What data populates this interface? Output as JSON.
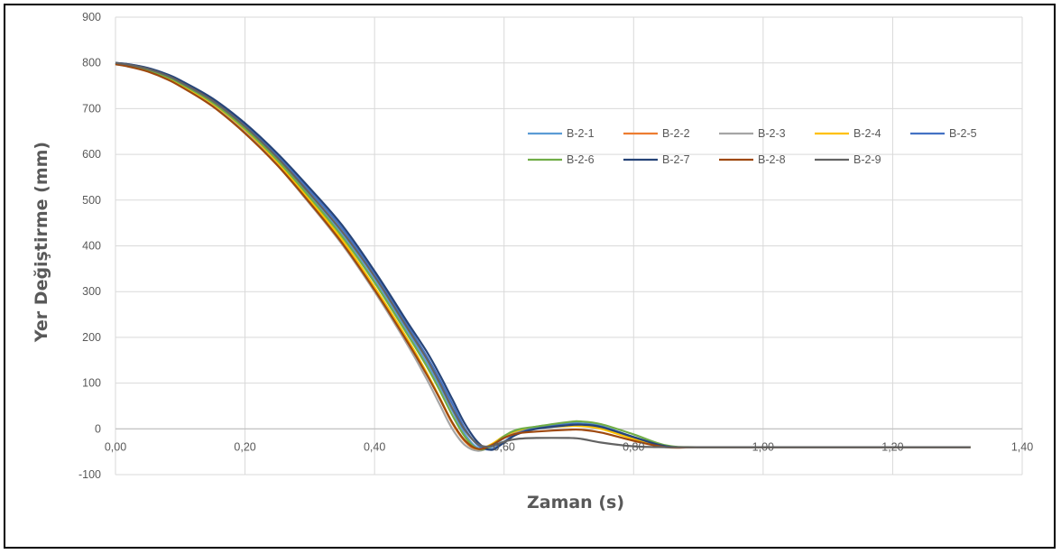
{
  "chart_data": {
    "type": "line",
    "title": "",
    "xlabel": "Zaman (s)",
    "ylabel": "Yer Değiştirme (mm)",
    "xlim": [
      0,
      1.4
    ],
    "ylim": [
      -100,
      900
    ],
    "x_ticks": [
      "0,00",
      "0,20",
      "0,40",
      "0,60",
      "0,80",
      "1,00",
      "1,20",
      "1,40"
    ],
    "y_ticks": [
      "-100",
      "0",
      "100",
      "200",
      "300",
      "400",
      "500",
      "600",
      "700",
      "800",
      "900"
    ],
    "grid": "major-both",
    "legend_position": "inside-top-right",
    "series": [
      {
        "name": "B-2-1",
        "color": "#5B9BD5",
        "x": [
          0,
          0.02,
          0.05,
          0.08,
          0.1,
          0.15,
          0.2,
          0.25,
          0.3,
          0.35,
          0.4,
          0.45,
          0.48,
          0.5,
          0.52,
          0.54,
          0.56,
          0.58,
          0.6,
          0.62,
          0.65,
          0.7,
          0.72,
          0.75,
          0.8,
          0.85,
          0.9,
          1.0,
          1.1,
          1.2,
          1.32
        ],
        "y": [
          800,
          796,
          786,
          770,
          757,
          715,
          658,
          590,
          510,
          425,
          325,
          215,
          145,
          95,
          40,
          -12,
          -42,
          -40,
          -20,
          -5,
          5,
          12,
          12,
          6,
          -18,
          -38,
          -40,
          -40,
          -40,
          -40,
          -40
        ]
      },
      {
        "name": "B-2-2",
        "color": "#ED7D31",
        "x": [
          0,
          0.02,
          0.05,
          0.08,
          0.1,
          0.15,
          0.2,
          0.25,
          0.3,
          0.35,
          0.4,
          0.45,
          0.48,
          0.5,
          0.52,
          0.54,
          0.56,
          0.58,
          0.6,
          0.62,
          0.65,
          0.7,
          0.72,
          0.75,
          0.8,
          0.85,
          0.9,
          1.0,
          1.1,
          1.2,
          1.32
        ],
        "y": [
          798,
          793,
          783,
          767,
          752,
          710,
          652,
          580,
          497,
          410,
          308,
          196,
          122,
          68,
          12,
          -28,
          -46,
          -36,
          -18,
          -5,
          3,
          8,
          8,
          2,
          -20,
          -38,
          -40,
          -40,
          -40,
          -40,
          -40
        ]
      },
      {
        "name": "B-2-3",
        "color": "#A5A5A5",
        "x": [
          0,
          0.02,
          0.05,
          0.08,
          0.1,
          0.15,
          0.2,
          0.25,
          0.3,
          0.35,
          0.4,
          0.45,
          0.48,
          0.5,
          0.52,
          0.54,
          0.56,
          0.58,
          0.6,
          0.62,
          0.65,
          0.7,
          0.72,
          0.75,
          0.8,
          0.85,
          0.9,
          1.0,
          1.1,
          1.2,
          1.32
        ],
        "y": [
          797,
          792,
          782,
          765,
          750,
          707,
          648,
          576,
          492,
          403,
          300,
          186,
          110,
          55,
          0,
          -36,
          -48,
          -38,
          -20,
          -6,
          2,
          8,
          8,
          2,
          -20,
          -38,
          -40,
          -40,
          -40,
          -40,
          -40
        ]
      },
      {
        "name": "B-2-4",
        "color": "#FFC000",
        "x": [
          0,
          0.02,
          0.05,
          0.08,
          0.1,
          0.15,
          0.2,
          0.25,
          0.3,
          0.35,
          0.4,
          0.45,
          0.48,
          0.5,
          0.52,
          0.54,
          0.56,
          0.58,
          0.6,
          0.62,
          0.65,
          0.7,
          0.72,
          0.75,
          0.8,
          0.85,
          0.9,
          1.0,
          1.1,
          1.2,
          1.32
        ],
        "y": [
          799,
          794,
          784,
          768,
          753,
          711,
          654,
          583,
          500,
          413,
          310,
          198,
          124,
          70,
          14,
          -26,
          -44,
          -34,
          -16,
          -4,
          2,
          6,
          6,
          0,
          -22,
          -38,
          -40,
          -40,
          -40,
          -40,
          -40
        ]
      },
      {
        "name": "B-2-5",
        "color": "#4472C4",
        "x": [
          0,
          0.02,
          0.05,
          0.08,
          0.1,
          0.15,
          0.2,
          0.25,
          0.3,
          0.35,
          0.4,
          0.45,
          0.48,
          0.5,
          0.52,
          0.54,
          0.56,
          0.58,
          0.6,
          0.62,
          0.65,
          0.7,
          0.72,
          0.75,
          0.8,
          0.85,
          0.9,
          1.0,
          1.1,
          1.2,
          1.32
        ],
        "y": [
          800,
          797,
          788,
          773,
          760,
          719,
          664,
          597,
          520,
          438,
          338,
          228,
          160,
          110,
          55,
          0,
          -36,
          -45,
          -28,
          -10,
          2,
          10,
          10,
          5,
          -18,
          -38,
          -40,
          -40,
          -40,
          -40,
          -40
        ]
      },
      {
        "name": "B-2-6",
        "color": "#70AD47",
        "x": [
          0,
          0.02,
          0.05,
          0.08,
          0.1,
          0.15,
          0.2,
          0.25,
          0.3,
          0.35,
          0.4,
          0.45,
          0.48,
          0.5,
          0.52,
          0.54,
          0.56,
          0.58,
          0.6,
          0.62,
          0.65,
          0.7,
          0.72,
          0.75,
          0.8,
          0.85,
          0.9,
          1.0,
          1.1,
          1.2,
          1.32
        ],
        "y": [
          799,
          795,
          785,
          769,
          755,
          713,
          656,
          587,
          506,
          420,
          320,
          208,
          138,
          86,
          30,
          -18,
          -44,
          -38,
          -16,
          -2,
          5,
          15,
          16,
          10,
          -12,
          -36,
          -40,
          -40,
          -40,
          -40,
          -40
        ]
      },
      {
        "name": "B-2-7",
        "color": "#264478",
        "x": [
          0,
          0.02,
          0.05,
          0.08,
          0.1,
          0.15,
          0.2,
          0.25,
          0.3,
          0.35,
          0.4,
          0.45,
          0.48,
          0.5,
          0.52,
          0.54,
          0.56,
          0.58,
          0.6,
          0.62,
          0.65,
          0.7,
          0.72,
          0.75,
          0.8,
          0.85,
          0.9,
          1.0,
          1.1,
          1.2,
          1.32
        ],
        "y": [
          800,
          797,
          789,
          775,
          762,
          722,
          668,
          602,
          526,
          445,
          345,
          235,
          170,
          120,
          65,
          10,
          -30,
          -46,
          -30,
          -12,
          0,
          8,
          9,
          4,
          -18,
          -38,
          -40,
          -40,
          -40,
          -40,
          -40
        ]
      },
      {
        "name": "B-2-8",
        "color": "#9E480E",
        "x": [
          0,
          0.02,
          0.05,
          0.08,
          0.1,
          0.15,
          0.2,
          0.25,
          0.3,
          0.35,
          0.4,
          0.45,
          0.48,
          0.5,
          0.52,
          0.54,
          0.56,
          0.58,
          0.6,
          0.62,
          0.65,
          0.7,
          0.72,
          0.75,
          0.8,
          0.85,
          0.9,
          1.0,
          1.1,
          1.2,
          1.32
        ],
        "y": [
          797,
          792,
          781,
          764,
          749,
          705,
          646,
          576,
          494,
          406,
          304,
          192,
          120,
          68,
          14,
          -26,
          -44,
          -36,
          -20,
          -10,
          -6,
          -2,
          -2,
          -8,
          -26,
          -40,
          -40,
          -40,
          -40,
          -40,
          -40
        ]
      },
      {
        "name": "B-2-9",
        "color": "#636363",
        "x": [
          0,
          0.02,
          0.05,
          0.08,
          0.1,
          0.15,
          0.2,
          0.25,
          0.3,
          0.35,
          0.4,
          0.45,
          0.48,
          0.5,
          0.52,
          0.54,
          0.56,
          0.58,
          0.6,
          0.62,
          0.65,
          0.7,
          0.72,
          0.75,
          0.8,
          0.85,
          0.9,
          1.0,
          1.1,
          1.2,
          1.32
        ],
        "y": [
          800,
          796,
          787,
          772,
          758,
          717,
          661,
          593,
          514,
          431,
          333,
          222,
          154,
          102,
          45,
          -4,
          -34,
          -38,
          -28,
          -22,
          -20,
          -20,
          -22,
          -30,
          -38,
          -40,
          -40,
          -40,
          -40,
          -40,
          -40
        ]
      }
    ]
  }
}
